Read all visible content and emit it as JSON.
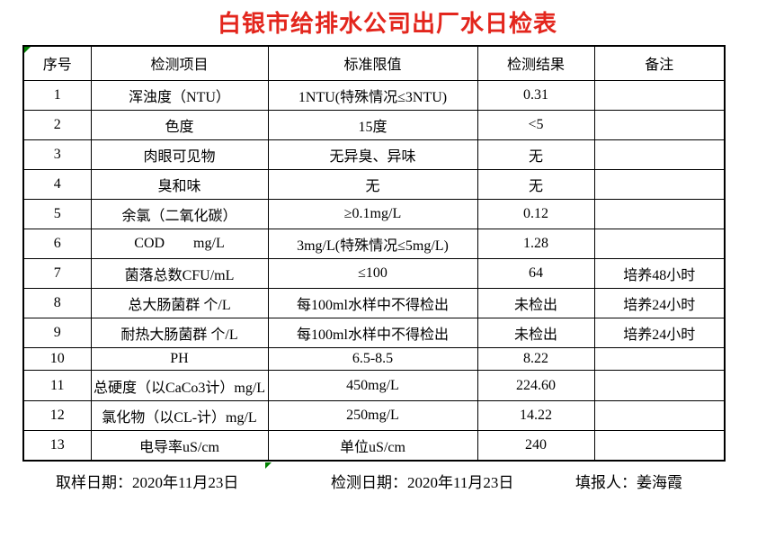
{
  "title": "白银市给排水公司出厂水日检表",
  "colors": {
    "title_red": "#e3261d",
    "flag_green": "#008000",
    "border_black": "#000000",
    "background": "#ffffff"
  },
  "table": {
    "headers": [
      "序号",
      "检测项目",
      "标准限值",
      "检测结果",
      "备注"
    ],
    "rows": [
      [
        "1",
        "浑浊度（NTU）",
        "1NTU(特殊情况≤3NTU)",
        "0.31",
        ""
      ],
      [
        "2",
        "色度",
        "15度",
        "<5",
        ""
      ],
      [
        "3",
        "肉眼可见物",
        "无异臭、异味",
        "无",
        ""
      ],
      [
        "4",
        "臭和味",
        "无",
        "无",
        ""
      ],
      [
        "5",
        "余氯（二氧化碳）",
        "≥0.1mg/L",
        "0.12",
        ""
      ],
      [
        "6",
        "COD        mg/L",
        "3mg/L(特殊情况≤5mg/L)",
        "1.28",
        ""
      ],
      [
        "7",
        "菌落总数CFU/mL",
        "≤100",
        "64",
        "培养48小时"
      ],
      [
        "8",
        "总大肠菌群 个/L",
        "每100ml水样中不得检出",
        "未检出",
        "培养24小时"
      ],
      [
        "9",
        "耐热大肠菌群 个/L",
        "每100ml水样中不得检出",
        "未检出",
        "培养24小时"
      ],
      [
        "10",
        "PH",
        "6.5-8.5",
        "8.22",
        ""
      ],
      [
        "11",
        "总硬度（以CaCo3计）mg/L",
        "450mg/L",
        "224.60",
        ""
      ],
      [
        "12",
        "氯化物（以CL-计）mg/L",
        "250mg/L",
        "14.22",
        ""
      ],
      [
        "13",
        "电导率uS/cm",
        "单位uS/cm",
        "240",
        ""
      ]
    ]
  },
  "footer": {
    "sampling_date": "取样日期：2020年11月23日",
    "test_date": "检测日期：2020年11月23日",
    "reporter": "填报人：姜海霞"
  },
  "icons": {
    "cell_flag": "excel-error-indicator-triangle"
  }
}
